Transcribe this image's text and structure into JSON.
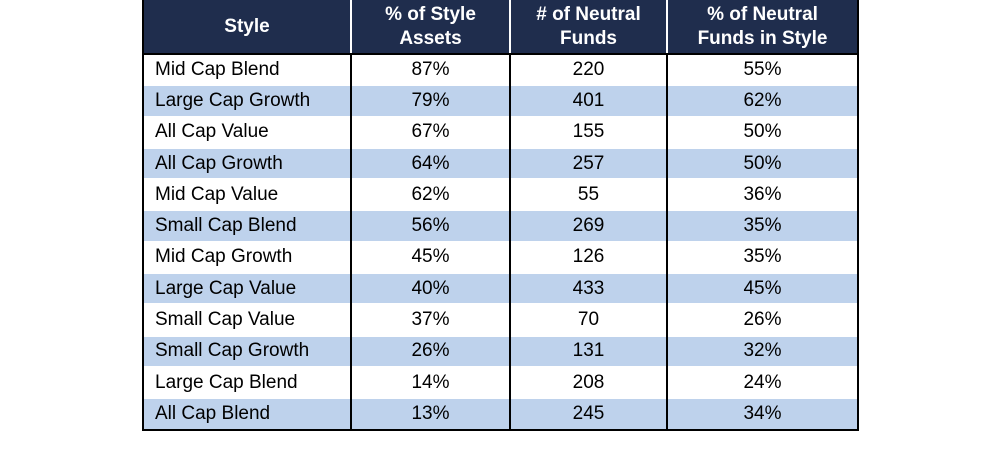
{
  "table": {
    "headers": [
      "Style",
      "% of Style Assets",
      "# of Neutral Funds",
      "% of Neutral Funds in Style"
    ],
    "header_lines": [
      [
        "Style"
      ],
      [
        "% of Style",
        "Assets"
      ],
      [
        "# of Neutral",
        "Funds"
      ],
      [
        "% of Neutral",
        "Funds in Style"
      ]
    ],
    "rows": [
      [
        "Mid Cap Blend",
        "87%",
        "220",
        "55%"
      ],
      [
        "Large Cap Growth",
        "79%",
        "401",
        "62%"
      ],
      [
        "All Cap Value",
        "67%",
        "155",
        "50%"
      ],
      [
        "All Cap Growth",
        "64%",
        "257",
        "50%"
      ],
      [
        "Mid Cap Value",
        "62%",
        "55",
        "36%"
      ],
      [
        "Small Cap Blend",
        "56%",
        "269",
        "35%"
      ],
      [
        "Mid Cap Growth",
        "45%",
        "126",
        "35%"
      ],
      [
        "Large Cap Value",
        "40%",
        "433",
        "45%"
      ],
      [
        "Small Cap Value",
        "37%",
        "70",
        "26%"
      ],
      [
        "Small Cap Growth",
        "26%",
        "131",
        "32%"
      ],
      [
        "Large Cap Blend",
        "14%",
        "208",
        "24%"
      ],
      [
        "All Cap Blend",
        "13%",
        "245",
        "34%"
      ]
    ],
    "colors": {
      "header_bg": "#1f2d4d",
      "header_text": "#ffffff",
      "band_row": "#bed2ec",
      "plain_row": "#ffffff"
    }
  }
}
